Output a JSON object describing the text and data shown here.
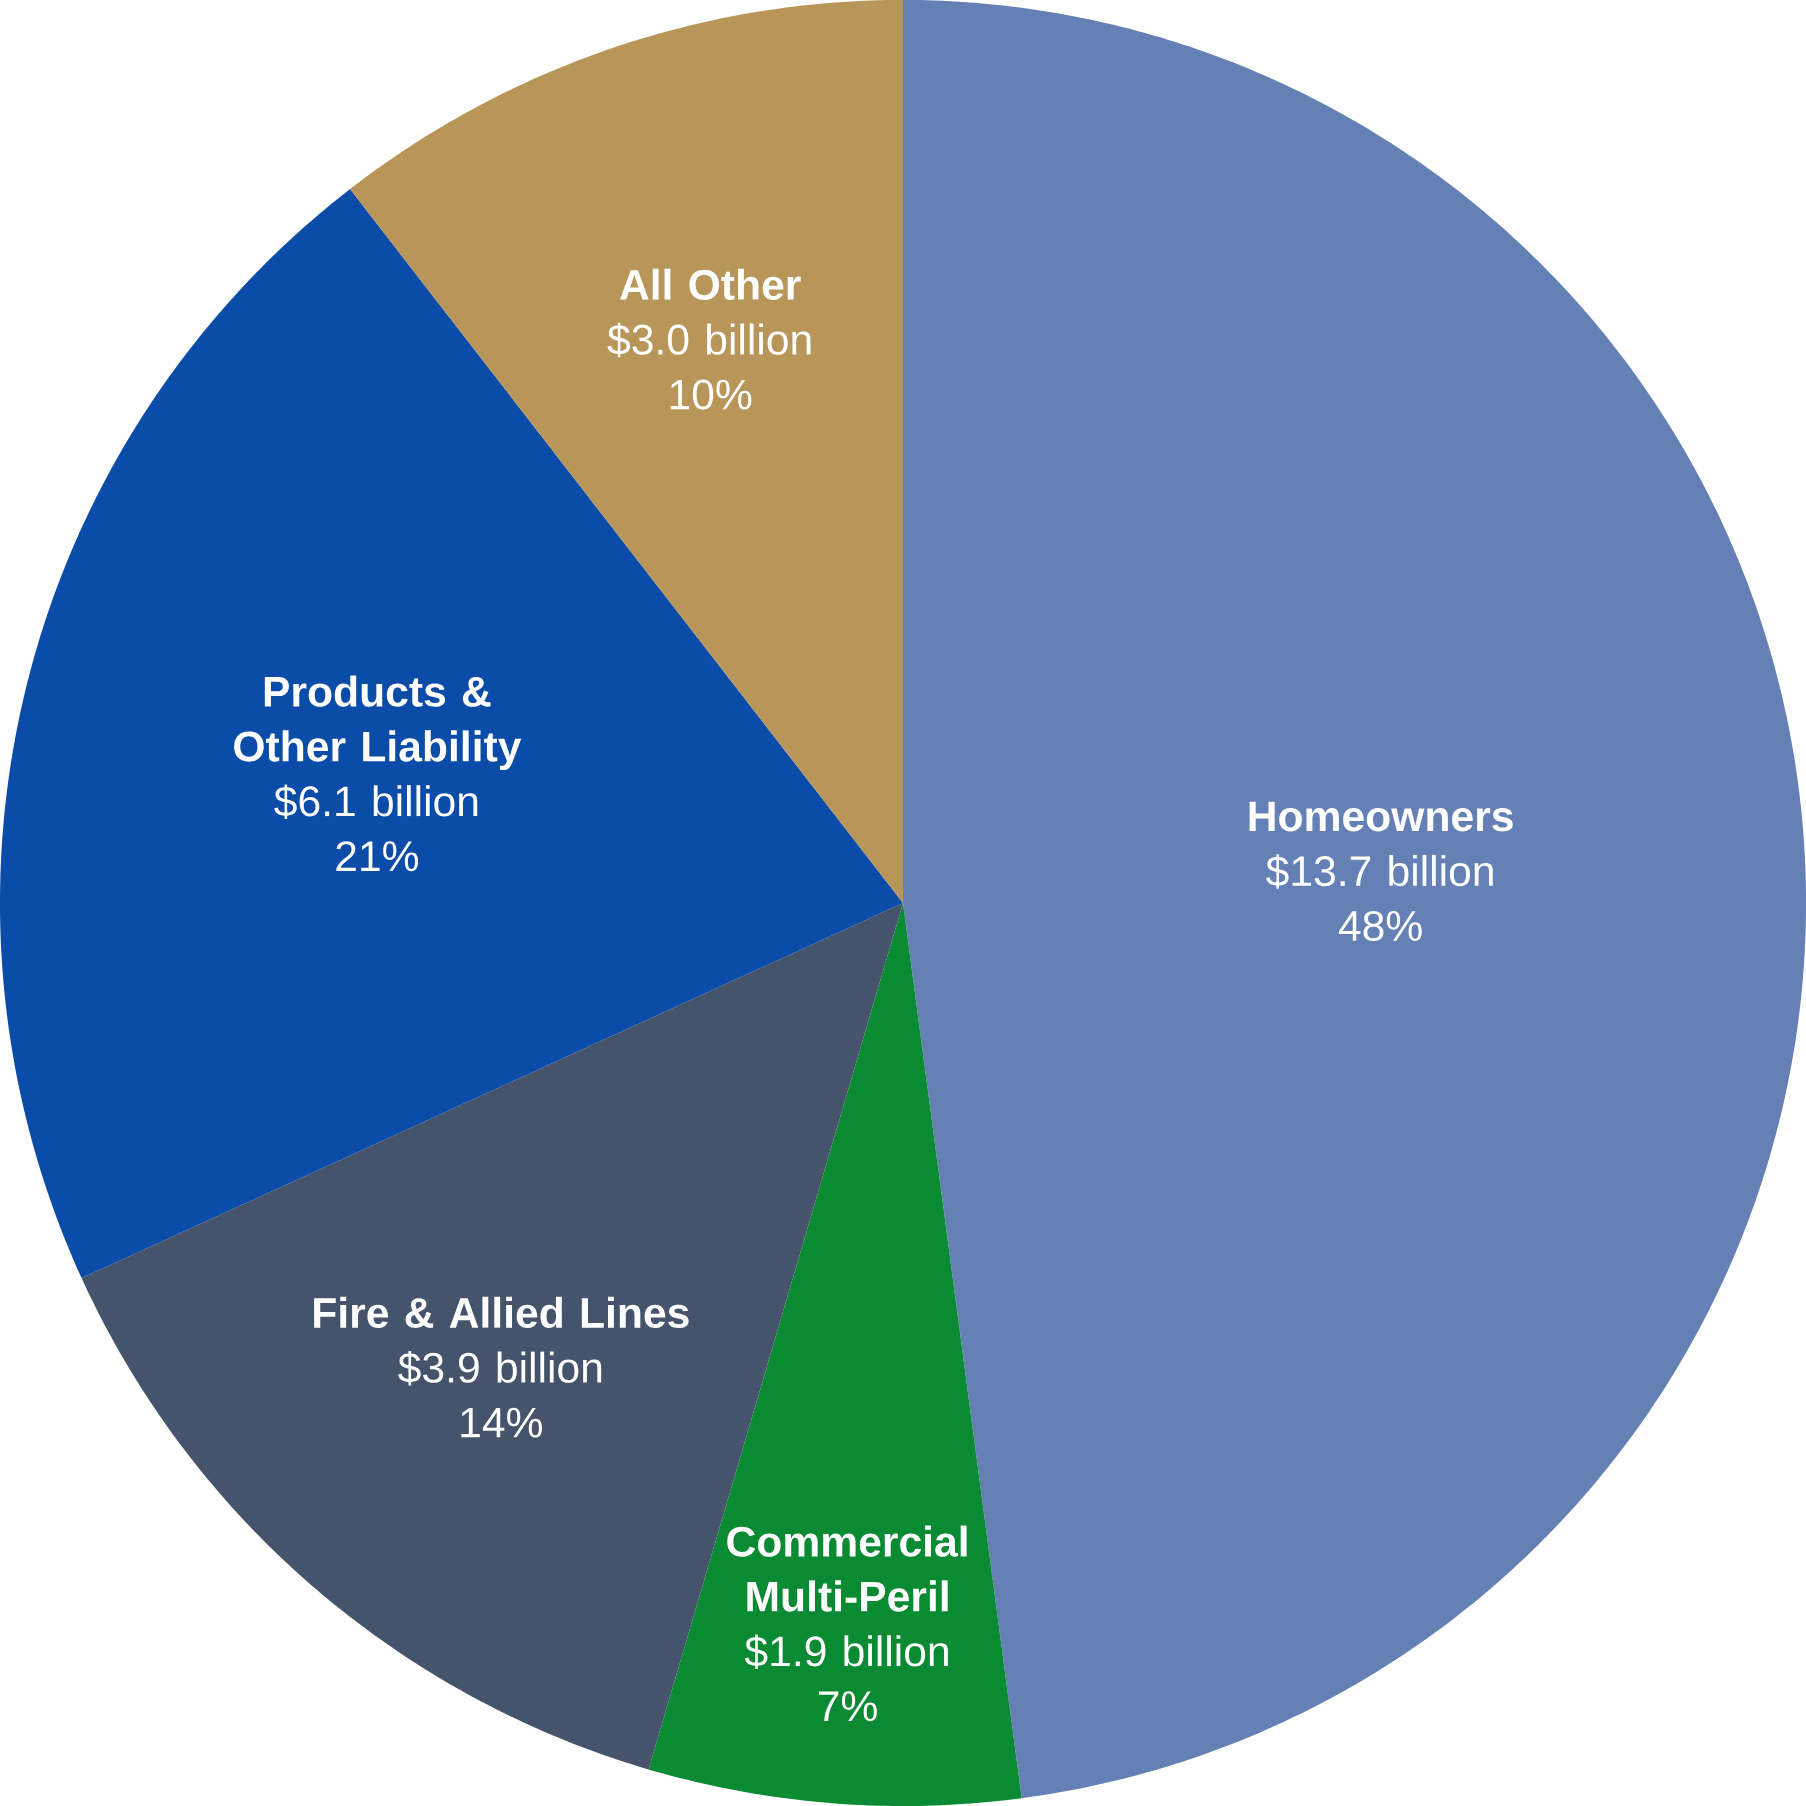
{
  "chart_data": {
    "type": "pie",
    "categories": [
      "Homeowners",
      "Commercial Multi-Peril",
      "Fire & Allied Lines",
      "Products & Other Liability",
      "All Other"
    ],
    "values": [
      13.7,
      1.9,
      3.9,
      6.1,
      3.0
    ],
    "colors": [
      "#6480b4",
      "#0a8a32",
      "#45546b",
      "#0b4ca8",
      "#b8965a"
    ],
    "value_labels": [
      "$13.7 billion",
      "$1.9 billion",
      "$3.9 billion",
      "$6.1 billion",
      "$3.0 billion"
    ],
    "annotations": [
      "48%",
      "7%",
      "14%",
      "21%",
      "10%"
    ]
  }
}
